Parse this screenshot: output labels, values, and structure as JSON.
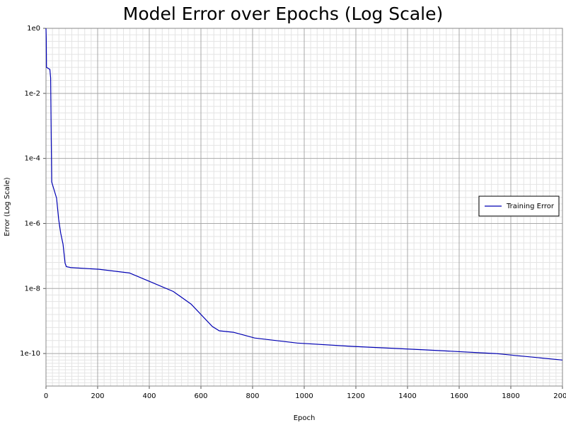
{
  "chart_data": {
    "type": "line",
    "title": "Model Error over Epochs (Log Scale)",
    "x_label": "Epoch",
    "y_label": "Error (Log Scale)",
    "x": [
      0,
      1,
      2,
      15,
      18,
      22,
      41,
      49,
      57,
      66,
      74,
      79,
      96,
      205,
      323,
      397,
      493,
      562,
      644,
      671,
      726,
      808,
      973,
      1192,
      1466,
      1740,
      2000
    ],
    "series": [
      {
        "name": "Training Error",
        "color": "#0000b3",
        "values": [
          1,
          0.5,
          0.063,
          0.055,
          0.03,
          1.9e-05,
          6e-06,
          1.35e-06,
          5e-07,
          2.3e-07,
          6e-08,
          4.7e-08,
          4.4e-08,
          3.9e-08,
          3e-08,
          1.7e-08,
          8.1e-09,
          3.3e-09,
          6.8e-10,
          5e-10,
          4.5e-10,
          3e-10,
          2.1e-10,
          1.65e-10,
          1.3e-10,
          1e-10,
          6.3e-11
        ]
      }
    ],
    "xlim": [
      0,
      2000
    ],
    "xticks": [
      0,
      200,
      400,
      600,
      800,
      1000,
      1200,
      1400,
      1600,
      1800,
      2000
    ],
    "ylim": [
      1e-11,
      1
    ],
    "y_log": true,
    "yticks": [
      {
        "value": 1,
        "label": "1e0"
      },
      {
        "value": 0.01,
        "label": "1e-2"
      },
      {
        "value": 0.0001,
        "label": "1e-4"
      },
      {
        "value": 1e-06,
        "label": "1e-6"
      },
      {
        "value": 1e-08,
        "label": "1e-8"
      },
      {
        "value": 1e-10,
        "label": "1e-10"
      }
    ],
    "grid": true,
    "minor_grid": true,
    "legend": "right"
  }
}
